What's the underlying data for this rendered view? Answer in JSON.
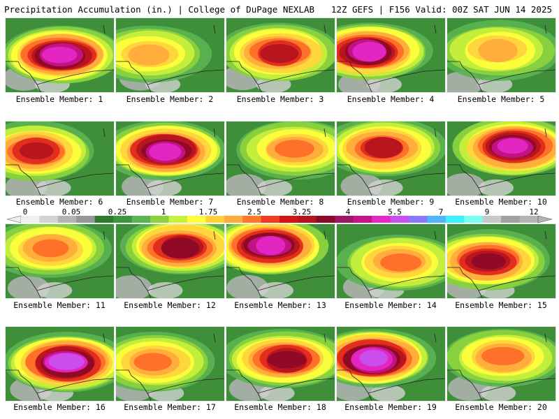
{
  "header": {
    "title_left": "Precipitation Accumulation (in.) | College of DuPage NEXLAB",
    "title_right": "12Z GEFS | F156 Valid: 00Z SAT JUN 14 2025"
  },
  "members": [
    {
      "label": "Ensemble Member: 1"
    },
    {
      "label": "Ensemble Member: 2"
    },
    {
      "label": "Ensemble Member: 3"
    },
    {
      "label": "Ensemble Member: 4"
    },
    {
      "label": "Ensemble Member: 5"
    },
    {
      "label": "Ensemble Member: 6"
    },
    {
      "label": "Ensemble Member: 7"
    },
    {
      "label": "Ensemble Member: 8"
    },
    {
      "label": "Ensemble Member: 9"
    },
    {
      "label": "Ensemble Member: 10"
    },
    {
      "label": "Ensemble Member: 11"
    },
    {
      "label": "Ensemble Member: 12"
    },
    {
      "label": "Ensemble Member: 13"
    },
    {
      "label": "Ensemble Member: 14"
    },
    {
      "label": "Ensemble Member: 15"
    },
    {
      "label": "Ensemble Member: 16"
    },
    {
      "label": "Ensemble Member: 17"
    },
    {
      "label": "Ensemble Member: 18"
    },
    {
      "label": "Ensemble Member: 19"
    },
    {
      "label": "Ensemble Member: 20"
    }
  ],
  "legend": {
    "ticks": [
      "0",
      "0.05",
      "0.25",
      "1",
      "1.75",
      "2.5",
      "3.25",
      "4",
      "5.5",
      "7",
      "9",
      "12"
    ],
    "colors": [
      "#f0f0f0",
      "#d2d2d2",
      "#b4b4b4",
      "#969696",
      "#2e7a2e",
      "#3c963c",
      "#5ab450",
      "#8cd23c",
      "#c8f03c",
      "#ffff3c",
      "#ffd23c",
      "#ffaa3c",
      "#ff7828",
      "#f03c1e",
      "#d21414",
      "#b4141e",
      "#8c0a28",
      "#a01464",
      "#c8148c",
      "#e628c8",
      "#c850f0",
      "#8c78ff",
      "#50b4ff",
      "#3cf0ff",
      "#78fff0",
      "#c8c8c8",
      "#a0a0a0",
      "#b4b4b4"
    ]
  }
}
